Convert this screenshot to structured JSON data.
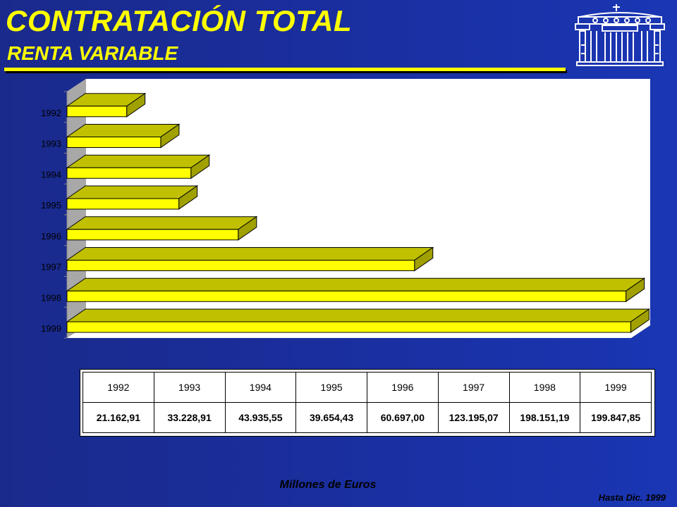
{
  "header": {
    "title": "CONTRATACIÓN TOTAL",
    "subtitle": "RENTA VARIABLE"
  },
  "logo": {
    "icon": "building-columns-icon"
  },
  "colors": {
    "bar_front": "#ffff00",
    "bar_top": "#c0c000",
    "bar_side": "#a0a000",
    "plot_bg": "#ffffff",
    "title": "#ffff00"
  },
  "chart_data": {
    "type": "bar",
    "orientation": "horizontal",
    "style": "3d",
    "categories": [
      "1992",
      "1993",
      "1994",
      "1995",
      "1996",
      "1997",
      "1998",
      "1999"
    ],
    "values": [
      21162.91,
      33228.91,
      43935.55,
      39654.43,
      60697.0,
      123195.07,
      198151.19,
      199847.85
    ],
    "xlim": [
      0,
      200000
    ],
    "grid": false,
    "legend": "none",
    "table": {
      "headers": [
        "1992",
        "1993",
        "1994",
        "1995",
        "1996",
        "1997",
        "1998",
        "1999"
      ],
      "values": [
        "21.162,91",
        "33.228,91",
        "43.935,55",
        "39.654,43",
        "60.697,00",
        "123.195,07",
        "198.151,19",
        "199.847,85"
      ]
    }
  },
  "footer": {
    "unit": "Millones de Euros",
    "date": "Hasta Dic. 1999"
  }
}
